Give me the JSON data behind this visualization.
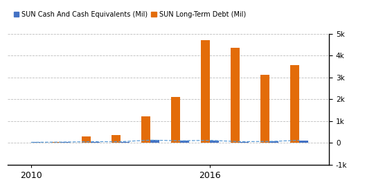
{
  "years": [
    2010,
    2011,
    2012,
    2013,
    2014,
    2015,
    2016,
    2017,
    2018,
    2019
  ],
  "cash": [
    20,
    30,
    50,
    50,
    120,
    90,
    110,
    50,
    60,
    110
  ],
  "long_term_debt": [
    5,
    20,
    300,
    350,
    1200,
    2100,
    4700,
    4350,
    3100,
    3550
  ],
  "cash_color": "#4472c4",
  "debt_color": "#e36c09",
  "line_color": "#5b9bd5",
  "legend_cash": "SUN Cash And Cash Equivalents (Mil)",
  "legend_debt": "SUN Long-Term Debt (Mil)",
  "ylim": [
    -1000,
    5000
  ],
  "yticks": [
    -1000,
    0,
    1000,
    2000,
    3000,
    4000,
    5000
  ],
  "ytick_labels": [
    "-1k",
    "0",
    "1k",
    "2k",
    "3k",
    "4k",
    "5k"
  ],
  "xtick_positions": [
    2010,
    2016
  ],
  "xtick_labels": [
    "2010",
    "2016"
  ],
  "background_color": "#ffffff",
  "grid_color": "#bbbbbb"
}
